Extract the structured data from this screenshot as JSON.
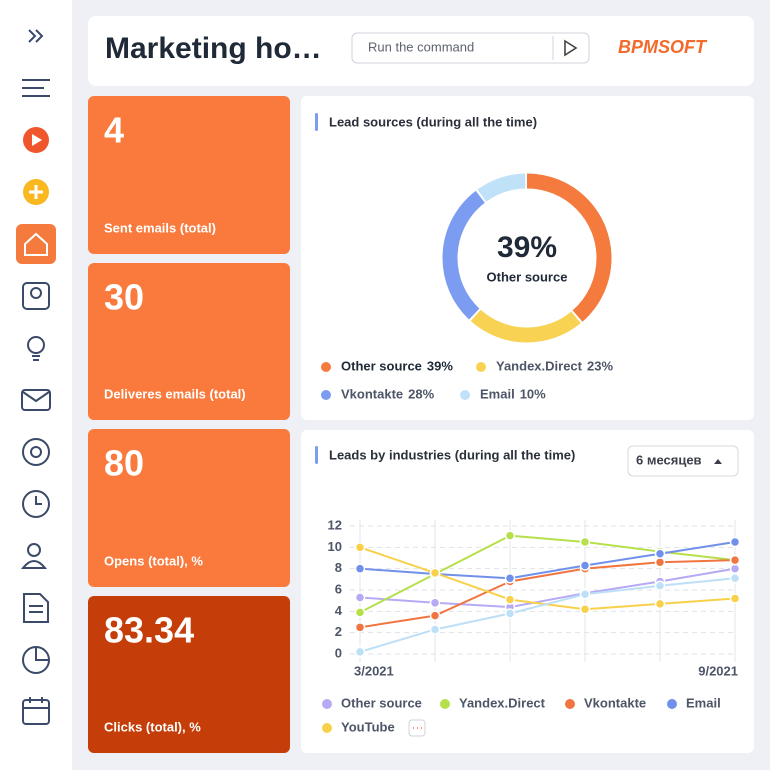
{
  "header": {
    "title": "Marketing ho…",
    "command_placeholder": "Run the command",
    "logo": "BPMSOFT"
  },
  "kpis": [
    {
      "value": "4",
      "label": "Sent emails (total)"
    },
    {
      "value": "30",
      "label": "Deliveres emails (total)"
    },
    {
      "value": "80",
      "label": "Opens (total), %"
    },
    {
      "value": "83.34",
      "label": "Clicks (total), %"
    }
  ],
  "chart_data": [
    {
      "type": "donut",
      "title": "Lead sources (during all the time)",
      "categories": [
        "Other source",
        "Yandex.Direct",
        "Vkontakte",
        "Email"
      ],
      "values": [
        39,
        23,
        28,
        10
      ],
      "value_labels": [
        "39%",
        "23%",
        "28%",
        "10%"
      ],
      "colors": [
        "#f47a3d",
        "#f8d353",
        "#7b9cf0",
        "#bfe2f8"
      ]
    },
    {
      "type": "line",
      "title": "Leads by industries (during all the time)",
      "period": "6 месяцев",
      "categories": [
        "3/2021",
        null,
        null,
        null,
        null,
        "9/2021"
      ],
      "ylim": [
        0,
        12
      ],
      "yticks": [
        0,
        2,
        4,
        6,
        8,
        10,
        12
      ],
      "grid": true,
      "series": [
        {
          "name": "Other source",
          "color": "#b6a9f5",
          "values": [
            5.3,
            4.8,
            4.4,
            5.7,
            6.8,
            8.0
          ]
        },
        {
          "name": "Yandex.Direct",
          "color": "#b5e04a",
          "values": [
            3.9,
            7.5,
            11.1,
            10.5,
            9.6,
            8.8
          ]
        },
        {
          "name": "Vkontakte",
          "color": "#f07540",
          "values": [
            2.5,
            3.6,
            6.8,
            8.0,
            8.6,
            8.8
          ]
        },
        {
          "name": "Email",
          "color": "#7090ea",
          "values": [
            8.0,
            7.5,
            7.1,
            8.3,
            9.4,
            10.5
          ]
        },
        {
          "name": "YouTube",
          "color": "#f8d04a",
          "values": [
            10.0,
            7.6,
            5.1,
            4.2,
            4.7,
            5.2
          ]
        },
        {
          "color": "#bde0f7",
          "values": [
            0.2,
            2.3,
            3.8,
            5.6,
            6.4,
            7.1
          ]
        }
      ]
    }
  ]
}
